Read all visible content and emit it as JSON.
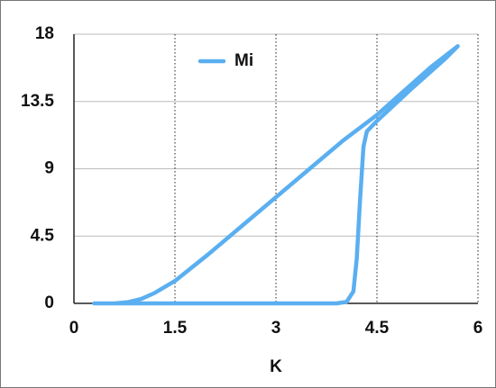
{
  "chart_data": {
    "type": "line",
    "x": [
      0.3,
      1,
      2,
      3,
      3.9,
      4.05,
      4.15,
      4.2,
      4.25,
      4.3,
      4.35,
      4.5,
      5,
      5.5,
      5.7,
      5.3,
      4.5,
      4,
      3.5,
      3,
      2.5,
      2,
      1.5,
      1.2,
      1,
      0.8,
      0.6,
      0.3
    ],
    "series": [
      {
        "name": "Mi",
        "color": "#5aaff0",
        "values": [
          0,
          0,
          0,
          0,
          0,
          0.1,
          0.8,
          3,
          7,
          10.5,
          11.5,
          12.2,
          14.3,
          16.3,
          17.2,
          15.8,
          12.6,
          10.9,
          9,
          7.1,
          5.2,
          3.3,
          1.5,
          0.7,
          0.3,
          0.08,
          0,
          0
        ]
      }
    ],
    "x_label": "K",
    "xlim": [
      0,
      6
    ],
    "xticks": [
      0,
      1.5,
      3,
      4.5,
      6
    ],
    "ylim": [
      0,
      18
    ],
    "yticks": [
      0,
      4.5,
      9,
      13.5,
      18
    ],
    "grid": true,
    "legend": "top-left"
  }
}
